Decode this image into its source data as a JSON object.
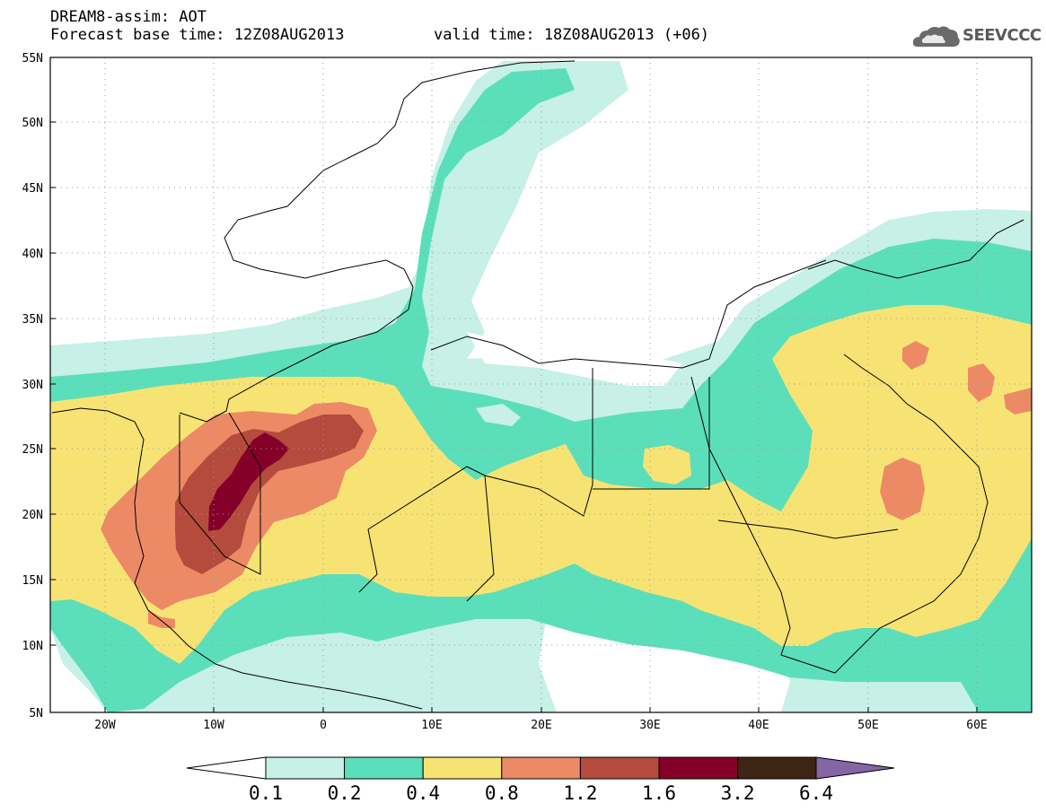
{
  "header": {
    "title": "DREAM8-assim: AOT",
    "base_time": "Forecast base time: 12Z08AUG2013",
    "valid_time": "valid time: 18Z08AUG2013 (+06)"
  },
  "logo": {
    "text": "SEEVCCC",
    "icon": "cloud-icon"
  },
  "map": {
    "lon_range": [
      -25,
      65
    ],
    "lat_range": [
      5,
      55
    ],
    "lat_labels": [
      "55N",
      "50N",
      "45N",
      "40N",
      "35N",
      "30N",
      "25N",
      "20N",
      "15N",
      "10N",
      "5N"
    ],
    "lon_labels": [
      "20W",
      "10W",
      "0",
      "10E",
      "20E",
      "30E",
      "40E",
      "50E",
      "60E"
    ],
    "grid": true
  },
  "colorbar": {
    "labels": [
      "0.1",
      "0.2",
      "0.4",
      "0.8",
      "1.2",
      "1.6",
      "3.2",
      "6.4"
    ],
    "colors": [
      "#ffffff",
      "#c7f0e6",
      "#5bdfba",
      "#f7e374",
      "#ec8a66",
      "#b54b3d",
      "#850029",
      "#3e2414",
      "#8466a6"
    ]
  }
}
